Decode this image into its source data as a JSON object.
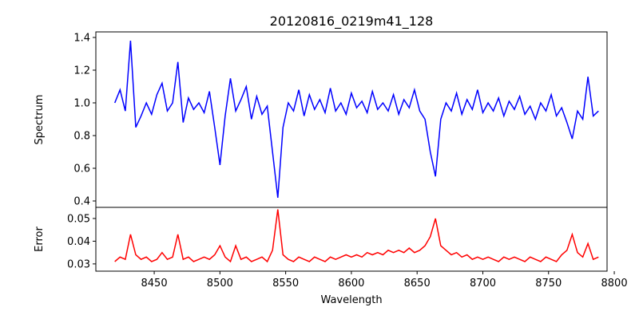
{
  "chart_data": {
    "type": "line",
    "title": "20120816_0219m41_128",
    "xlabel": "Wavelength",
    "xlim": [
      8405.6,
      8794.5
    ],
    "xticks": [
      8450,
      8500,
      8550,
      8600,
      8650,
      8700,
      8750,
      8800
    ],
    "x": [
      8420,
      8424,
      8428,
      8432,
      8436,
      8440,
      8444,
      8448,
      8452,
      8456,
      8460,
      8464,
      8468,
      8472,
      8476,
      8480,
      8484,
      8488,
      8492,
      8496,
      8500,
      8504,
      8508,
      8512,
      8516,
      8520,
      8524,
      8528,
      8532,
      8536,
      8540,
      8544,
      8548,
      8552,
      8556,
      8560,
      8564,
      8568,
      8572,
      8576,
      8580,
      8584,
      8588,
      8592,
      8596,
      8600,
      8604,
      8608,
      8612,
      8616,
      8620,
      8624,
      8628,
      8632,
      8636,
      8640,
      8644,
      8648,
      8652,
      8656,
      8660,
      8664,
      8668,
      8672,
      8676,
      8680,
      8684,
      8688,
      8692,
      8696,
      8700,
      8704,
      8708,
      8712,
      8716,
      8720,
      8724,
      8728,
      8732,
      8736,
      8740,
      8744,
      8748,
      8752,
      8756,
      8760,
      8764,
      8768,
      8772,
      8776,
      8780,
      8784,
      8788
    ],
    "panels": [
      {
        "ylabel": "Spectrum",
        "color": "#0000ff",
        "ylim": [
          0.361,
          1.434
        ],
        "yticks": [
          0.4,
          0.6,
          0.8,
          1.0,
          1.2,
          1.4
        ],
        "ytick_labels": [
          "0.4",
          "0.6",
          "0.8",
          "1.0",
          "1.2",
          "1.4"
        ],
        "values": [
          1.0,
          1.08,
          0.95,
          1.38,
          0.85,
          0.92,
          1.0,
          0.93,
          1.05,
          1.12,
          0.95,
          1.0,
          1.25,
          0.88,
          1.03,
          0.96,
          1.0,
          0.94,
          1.07,
          0.85,
          0.62,
          0.92,
          1.15,
          0.95,
          1.02,
          1.1,
          0.9,
          1.04,
          0.93,
          0.98,
          0.7,
          0.42,
          0.85,
          1.0,
          0.95,
          1.08,
          0.92,
          1.05,
          0.96,
          1.02,
          0.94,
          1.09,
          0.95,
          1.0,
          0.93,
          1.06,
          0.97,
          1.01,
          0.94,
          1.07,
          0.96,
          1.0,
          0.95,
          1.05,
          0.93,
          1.02,
          0.97,
          1.08,
          0.95,
          0.9,
          0.7,
          0.55,
          0.9,
          1.0,
          0.95,
          1.06,
          0.93,
          1.02,
          0.96,
          1.08,
          0.94,
          1.0,
          0.95,
          1.03,
          0.92,
          1.01,
          0.96,
          1.04,
          0.93,
          0.98,
          0.9,
          1.0,
          0.95,
          1.05,
          0.92,
          0.97,
          0.88,
          0.78,
          0.95,
          0.9,
          1.16,
          0.92,
          0.95
        ]
      },
      {
        "ylabel": "Error",
        "color": "#ff0000",
        "ylim": [
          0.0268,
          0.0549
        ],
        "yticks": [
          0.03,
          0.04,
          0.05
        ],
        "ytick_labels": [
          "0.03",
          "0.04",
          "0.05"
        ],
        "values": [
          0.031,
          0.033,
          0.032,
          0.043,
          0.034,
          0.032,
          0.033,
          0.031,
          0.032,
          0.035,
          0.032,
          0.033,
          0.043,
          0.032,
          0.033,
          0.031,
          0.032,
          0.033,
          0.032,
          0.034,
          0.038,
          0.033,
          0.031,
          0.038,
          0.032,
          0.033,
          0.031,
          0.032,
          0.033,
          0.031,
          0.036,
          0.054,
          0.034,
          0.032,
          0.031,
          0.033,
          0.032,
          0.031,
          0.033,
          0.032,
          0.031,
          0.033,
          0.032,
          0.033,
          0.034,
          0.033,
          0.034,
          0.033,
          0.035,
          0.034,
          0.035,
          0.034,
          0.036,
          0.035,
          0.036,
          0.035,
          0.037,
          0.035,
          0.036,
          0.038,
          0.042,
          0.05,
          0.038,
          0.036,
          0.034,
          0.035,
          0.033,
          0.034,
          0.032,
          0.033,
          0.032,
          0.033,
          0.032,
          0.031,
          0.033,
          0.032,
          0.033,
          0.032,
          0.031,
          0.033,
          0.032,
          0.031,
          0.033,
          0.032,
          0.031,
          0.034,
          0.036,
          0.043,
          0.035,
          0.033,
          0.039,
          0.032,
          0.033
        ]
      }
    ],
    "grid": false
  }
}
